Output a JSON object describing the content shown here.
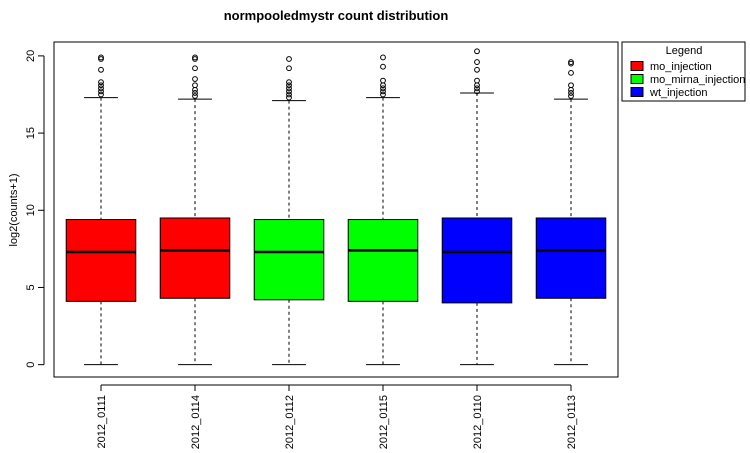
{
  "chart_data": {
    "type": "box",
    "title": "normpooledmystr count distribution",
    "xlabel": "",
    "ylabel": "log2(counts+1)",
    "ylim": [
      -0.8,
      20.9
    ],
    "yticks": [
      0,
      5,
      10,
      15,
      20
    ],
    "categories": [
      "2012_0111",
      "2012_0114",
      "2012_0112",
      "2012_0115",
      "2012_0110",
      "2012_0113"
    ],
    "boxes": [
      {
        "label": "2012_0111",
        "group": "mo_injection",
        "min": 0,
        "q1": 4.1,
        "median": 7.3,
        "q3": 9.4,
        "whisker_high": 17.3,
        "outliers": [
          17.5,
          17.7,
          17.9,
          18.1,
          18.3,
          19.1,
          19.8,
          19.9
        ]
      },
      {
        "label": "2012_0114",
        "group": "mo_injection",
        "min": 0,
        "q1": 4.3,
        "median": 7.4,
        "q3": 9.5,
        "whisker_high": 17.2,
        "outliers": [
          17.4,
          17.6,
          17.8,
          18.1,
          18.5,
          19.2,
          19.8,
          19.9
        ]
      },
      {
        "label": "2012_0112",
        "group": "mo_mirna_injection",
        "min": 0,
        "q1": 4.2,
        "median": 7.3,
        "q3": 9.4,
        "whisker_high": 17.1,
        "outliers": [
          17.3,
          17.5,
          17.7,
          17.9,
          18.1,
          18.3,
          19.2,
          19.8
        ]
      },
      {
        "label": "2012_0115",
        "group": "mo_mirna_injection",
        "min": 0,
        "q1": 4.1,
        "median": 7.4,
        "q3": 9.4,
        "whisker_high": 17.3,
        "outliers": [
          17.5,
          17.7,
          17.9,
          18.1,
          18.4,
          19.3,
          19.9
        ]
      },
      {
        "label": "2012_0110",
        "group": "wt_injection",
        "min": 0,
        "q1": 4.0,
        "median": 7.3,
        "q3": 9.5,
        "whisker_high": 17.6,
        "outliers": [
          17.7,
          17.9,
          18.1,
          18.4,
          19.1,
          19.6,
          20.3
        ]
      },
      {
        "label": "2012_0113",
        "group": "wt_injection",
        "min": 0,
        "q1": 4.3,
        "median": 7.4,
        "q3": 9.5,
        "whisker_high": 17.2,
        "outliers": [
          17.4,
          17.6,
          17.8,
          18.1,
          18.9,
          19.5,
          19.6
        ]
      }
    ],
    "legend": {
      "title": "Legend",
      "position": "outside-top-right",
      "items": [
        {
          "name": "mo_injection",
          "color": "#ff0000"
        },
        {
          "name": "mo_mirna_injection",
          "color": "#00ff00"
        },
        {
          "name": "wt_injection",
          "color": "#0000ff"
        }
      ]
    },
    "grid": false
  }
}
